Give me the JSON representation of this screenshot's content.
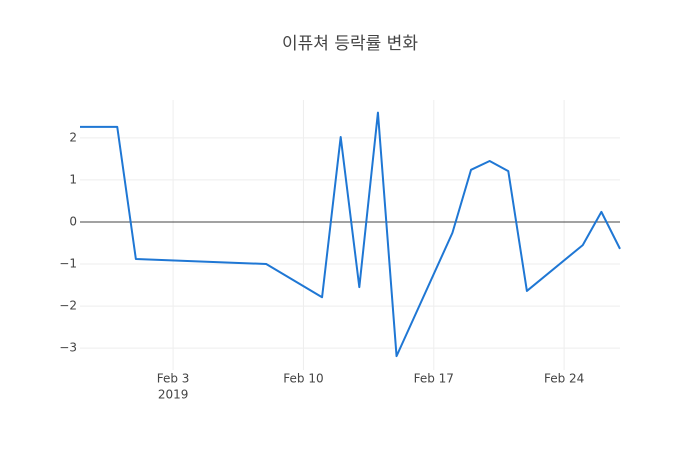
{
  "chart_data": {
    "type": "line",
    "title": "이퓨쳐 등락률 변화",
    "x": [
      "2019-01-29",
      "2019-01-31",
      "2019-02-01",
      "2019-02-08",
      "2019-02-11",
      "2019-02-12",
      "2019-02-13",
      "2019-02-14",
      "2019-02-15",
      "2019-02-18",
      "2019-02-19",
      "2019-02-20",
      "2019-02-21",
      "2019-02-22",
      "2019-02-25",
      "2019-02-26",
      "2019-02-27"
    ],
    "values": [
      2.26,
      2.26,
      -0.88,
      -1.0,
      -1.79,
      2.02,
      -1.55,
      2.6,
      -3.19,
      -0.26,
      1.24,
      1.45,
      1.21,
      -1.64,
      -0.55,
      0.24,
      -0.64
    ],
    "color": "#1f77d4",
    "xlim": [
      "2019-01-29",
      "2019-02-27"
    ],
    "xticks": [
      {
        "value": "2019-02-03",
        "label": "Feb 3"
      },
      {
        "value": "2019-02-10",
        "label": "Feb 10"
      },
      {
        "value": "2019-02-17",
        "label": "Feb 17"
      },
      {
        "value": "2019-02-24",
        "label": "Feb 24"
      }
    ],
    "xtick_year": "2019",
    "ylim": [
      -3.52,
      2.9
    ],
    "yticks": [
      {
        "value": -3,
        "label": "−3"
      },
      {
        "value": -2,
        "label": "−2"
      },
      {
        "value": -1,
        "label": "−1"
      },
      0,
      1,
      2
    ],
    "grid": true,
    "zeroline": true
  }
}
